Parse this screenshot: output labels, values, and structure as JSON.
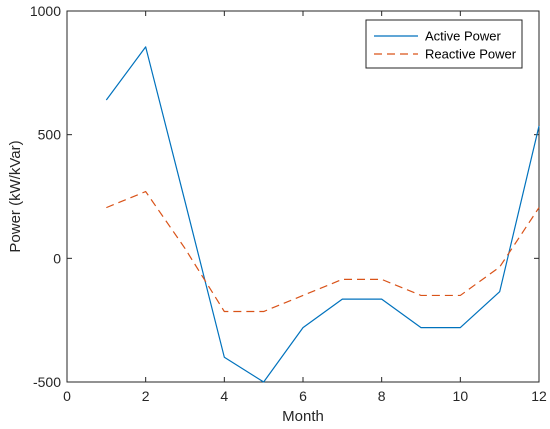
{
  "chart_data": {
    "type": "line",
    "xlabel": "Month",
    "ylabel": "Power (kW/kVar)",
    "xlim": [
      0,
      12
    ],
    "ylim": [
      -500,
      1000
    ],
    "xticks": [
      0,
      2,
      4,
      6,
      8,
      10,
      12
    ],
    "yticks": [
      -500,
      0,
      500,
      1000
    ],
    "grid": false,
    "legend_position": "top-right",
    "x": [
      1,
      2,
      3,
      4,
      5,
      6,
      7,
      8,
      9,
      10,
      11,
      12
    ],
    "series": [
      {
        "name": "Active Power",
        "color": "#0072BD",
        "style": "solid",
        "values": [
          640,
          855,
          230,
          -400,
          -500,
          -280,
          -165,
          -165,
          -280,
          -280,
          -135,
          535
        ]
      },
      {
        "name": "Reactive Power",
        "color": "#D95319",
        "style": "dashed",
        "values": [
          205,
          270,
          40,
          -215,
          -215,
          -150,
          -85,
          -85,
          -150,
          -150,
          -35,
          205
        ]
      }
    ]
  }
}
